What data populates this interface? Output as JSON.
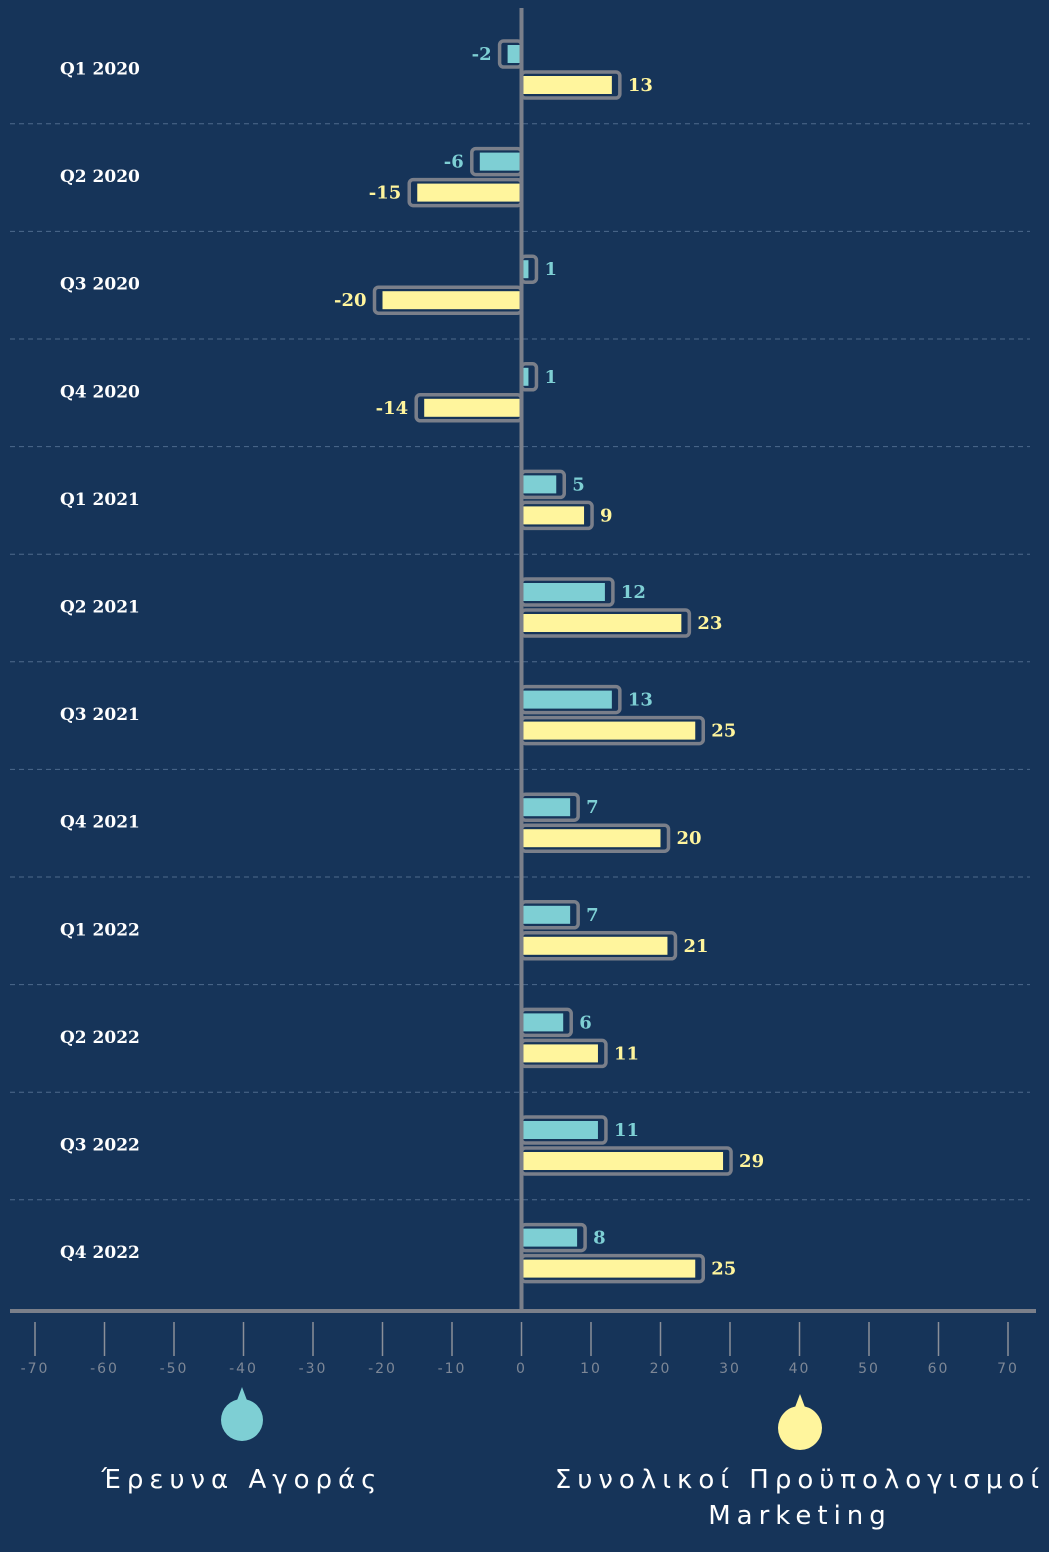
{
  "chart_data": {
    "type": "bar",
    "orientation": "horizontal",
    "categories": [
      "Q1 2020",
      "Q2 2020",
      "Q3 2020",
      "Q4 2020",
      "Q1 2021",
      "Q2 2021",
      "Q3 2021",
      "Q4 2021",
      "Q1 2022",
      "Q2 2022",
      "Q3 2022",
      "Q4 2022"
    ],
    "series": [
      {
        "name": "Έρευνα Αγοράς",
        "color": "#7ecfd4",
        "values": [
          -2,
          -6,
          1,
          1,
          5,
          12,
          13,
          7,
          7,
          6,
          11,
          8
        ]
      },
      {
        "name": "Συνολικοί Προϋπολογισμοί Marketing",
        "color": "#fff59d",
        "values": [
          13,
          -15,
          -20,
          -14,
          9,
          23,
          25,
          20,
          21,
          11,
          29,
          25
        ]
      }
    ],
    "xlim": [
      -70,
      70
    ],
    "xticks": [
      -70,
      -60,
      -50,
      -40,
      -30,
      -20,
      -10,
      0,
      10,
      20,
      30,
      40,
      50,
      60,
      70
    ]
  }
}
